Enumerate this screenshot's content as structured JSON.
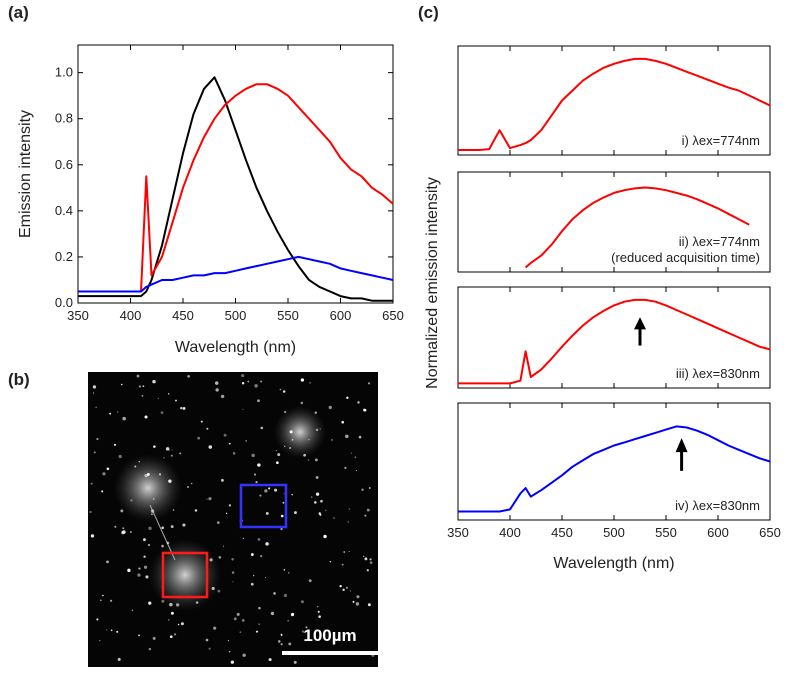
{
  "chart_data": [
    {
      "type": "line",
      "label": "(a)",
      "x_label": "Wavelength (nm)",
      "y_label": "Emission intensity",
      "xlim": [
        350,
        650
      ],
      "xticks": [
        350,
        400,
        450,
        500,
        550,
        600,
        650
      ],
      "ylim": [
        0,
        1.12
      ],
      "yticks": [
        {
          "value": 0,
          "label": "0.0"
        },
        0.2,
        0.4,
        0.6,
        0.8,
        {
          "value": 1,
          "label": "1.0"
        }
      ],
      "x": [
        350,
        360,
        370,
        380,
        390,
        400,
        410,
        415,
        420,
        430,
        440,
        450,
        460,
        470,
        480,
        490,
        500,
        510,
        520,
        530,
        540,
        550,
        560,
        570,
        580,
        590,
        600,
        610,
        620,
        630,
        640,
        650
      ],
      "series": [
        {
          "color": "#000000",
          "values": [
            0.03,
            0.03,
            0.03,
            0.03,
            0.03,
            0.03,
            0.03,
            0.05,
            0.1,
            0.25,
            0.45,
            0.65,
            0.82,
            0.93,
            0.98,
            0.88,
            0.75,
            0.62,
            0.5,
            0.4,
            0.31,
            0.23,
            0.16,
            0.1,
            0.07,
            0.05,
            0.03,
            0.02,
            0.02,
            0.01,
            0.01,
            0.01
          ]
        },
        {
          "color": "#ff0000",
          "values": [
            0.05,
            0.05,
            0.05,
            0.05,
            0.05,
            0.05,
            0.05,
            0.55,
            0.12,
            0.2,
            0.35,
            0.5,
            0.62,
            0.72,
            0.8,
            0.86,
            0.9,
            0.93,
            0.95,
            0.95,
            0.93,
            0.9,
            0.85,
            0.8,
            0.75,
            0.7,
            0.63,
            0.58,
            0.55,
            0.5,
            0.47,
            0.43
          ]
        },
        {
          "color": "#0000ff",
          "values": [
            0.05,
            0.05,
            0.05,
            0.05,
            0.05,
            0.05,
            0.05,
            0.07,
            0.08,
            0.1,
            0.1,
            0.11,
            0.12,
            0.12,
            0.13,
            0.13,
            0.14,
            0.15,
            0.16,
            0.17,
            0.18,
            0.19,
            0.2,
            0.19,
            0.18,
            0.17,
            0.15,
            0.14,
            0.13,
            0.12,
            0.11,
            0.1
          ]
        }
      ]
    },
    {
      "type": "panel-stack",
      "label": "(c)",
      "x_label": "Wavelength (nm)",
      "y_label": "Normalized emission intensity",
      "xlim": [
        350,
        650
      ],
      "xticks": [
        350,
        400,
        450,
        500,
        550,
        600,
        650
      ],
      "ylim": [
        0,
        1.1
      ],
      "x": [
        350,
        360,
        370,
        380,
        390,
        400,
        410,
        415,
        420,
        430,
        440,
        450,
        460,
        470,
        480,
        490,
        500,
        510,
        520,
        530,
        540,
        550,
        560,
        570,
        580,
        590,
        600,
        610,
        620,
        630,
        640,
        650
      ],
      "subplots": [
        {
          "annotations": [
            "i) λex=774nm"
          ],
          "series": [
            {
              "color": "#ff0000",
              "values": [
                0.05,
                0.05,
                0.05,
                0.06,
                0.25,
                0.07,
                0.1,
                0.12,
                0.15,
                0.25,
                0.4,
                0.55,
                0.65,
                0.75,
                0.82,
                0.88,
                0.92,
                0.95,
                0.97,
                0.97,
                0.95,
                0.92,
                0.88,
                0.84,
                0.8,
                0.76,
                0.72,
                0.68,
                0.65,
                0.6,
                0.55,
                0.5
              ]
            }
          ]
        },
        {
          "annotations": [
            "ii) λex=774nm",
            "(reduced acquisition time)"
          ],
          "series": [
            {
              "color": "#ff0000",
              "values": [
                null,
                null,
                null,
                null,
                null,
                null,
                null,
                0.05,
                0.1,
                0.18,
                0.3,
                0.45,
                0.58,
                0.68,
                0.76,
                0.82,
                0.87,
                0.9,
                0.92,
                0.93,
                0.92,
                0.9,
                0.87,
                0.84,
                0.8,
                0.75,
                0.7,
                0.64,
                0.58,
                0.52,
                null,
                null
              ]
            }
          ]
        },
        {
          "annotations": [
            "iii) λex=830nm"
          ],
          "arrow_x": 525,
          "series": [
            {
              "color": "#ff0000",
              "values": [
                0.05,
                0.05,
                0.05,
                0.05,
                0.05,
                0.05,
                0.08,
                0.4,
                0.12,
                0.2,
                0.32,
                0.45,
                0.57,
                0.68,
                0.77,
                0.84,
                0.9,
                0.94,
                0.96,
                0.96,
                0.94,
                0.9,
                0.85,
                0.8,
                0.75,
                0.7,
                0.65,
                0.6,
                0.55,
                0.5,
                0.45,
                0.42
              ]
            }
          ]
        },
        {
          "annotations": [
            "iv) λex=830nm"
          ],
          "arrow_x": 565,
          "series": [
            {
              "color": "#0000ff",
              "values": [
                0.08,
                0.08,
                0.08,
                0.08,
                0.08,
                0.1,
                0.25,
                0.3,
                0.22,
                0.28,
                0.35,
                0.42,
                0.5,
                0.56,
                0.62,
                0.66,
                0.7,
                0.73,
                0.76,
                0.79,
                0.82,
                0.85,
                0.88,
                0.87,
                0.84,
                0.8,
                0.75,
                0.7,
                0.66,
                0.62,
                0.58,
                0.55
              ]
            }
          ]
        }
      ]
    }
  ],
  "image_panel": {
    "label": "(b)",
    "scale_bar": "100µm"
  }
}
